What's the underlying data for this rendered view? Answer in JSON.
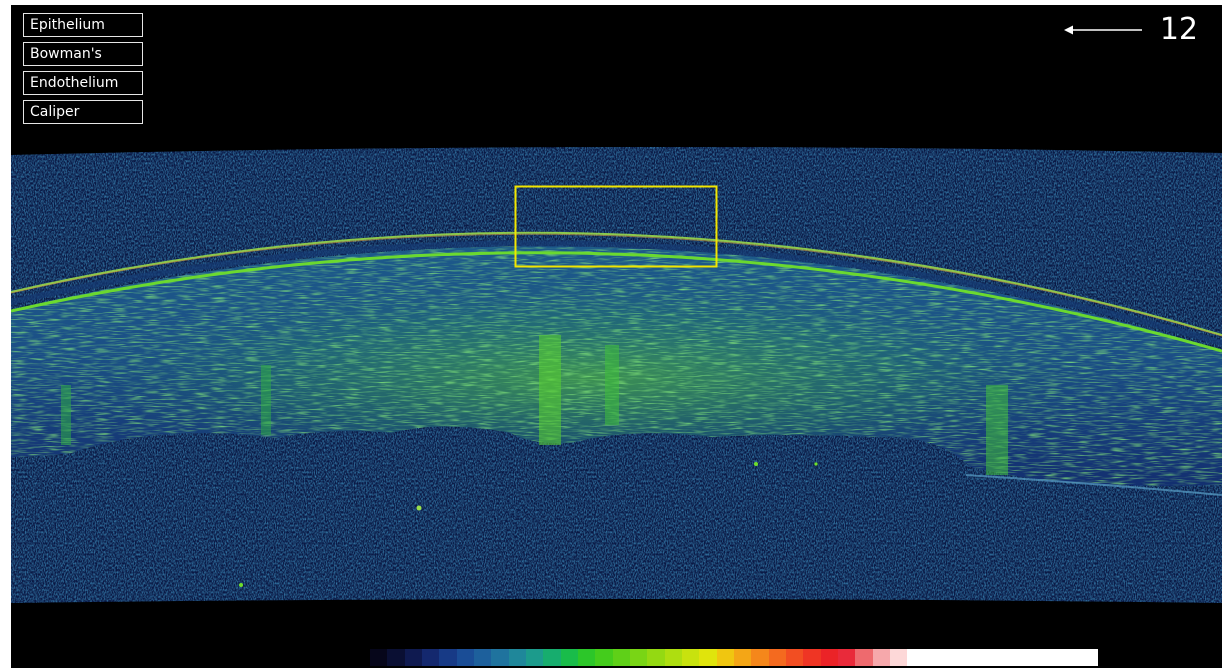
{
  "layer_buttons": {
    "epithelium": "Epithelium",
    "bowmans": "Bowman's",
    "endothelium": "Endothelium",
    "caliper": "Caliper"
  },
  "orientation": {
    "clock_position": "12",
    "arrow_icon": "left-arrow-icon"
  },
  "roi_box": {
    "color": "#f2e600"
  },
  "colors": {
    "background": "#000000",
    "button_border": "#e6e6e6",
    "button_text": "#ffffff",
    "scan_tissue_low": "#0f2a6b",
    "scan_tissue_high": "#6fdf2a"
  },
  "colormap": [
    "#06061a",
    "#0a0f33",
    "#0f1a50",
    "#14286e",
    "#173a86",
    "#1a4d96",
    "#1d609c",
    "#1f739e",
    "#1f879a",
    "#1c9b8c",
    "#17ad6e",
    "#19bc4a",
    "#2cc629",
    "#44cc1c",
    "#5fd018",
    "#79d515",
    "#94d912",
    "#aede10",
    "#c8e20e",
    "#e0e40c",
    "#f0c610",
    "#f4a616",
    "#f5871b",
    "#f46a1f",
    "#f24e22",
    "#ef3524",
    "#eb2327",
    "#e92a3a",
    "#ee6a6e",
    "#f6a8ab",
    "#fdd8d8",
    "#ffffff",
    "#ffffff",
    "#ffffff",
    "#ffffff",
    "#ffffff",
    "#ffffff",
    "#ffffff",
    "#ffffff",
    "#ffffff",
    "#ffffff",
    "#ffffff"
  ]
}
